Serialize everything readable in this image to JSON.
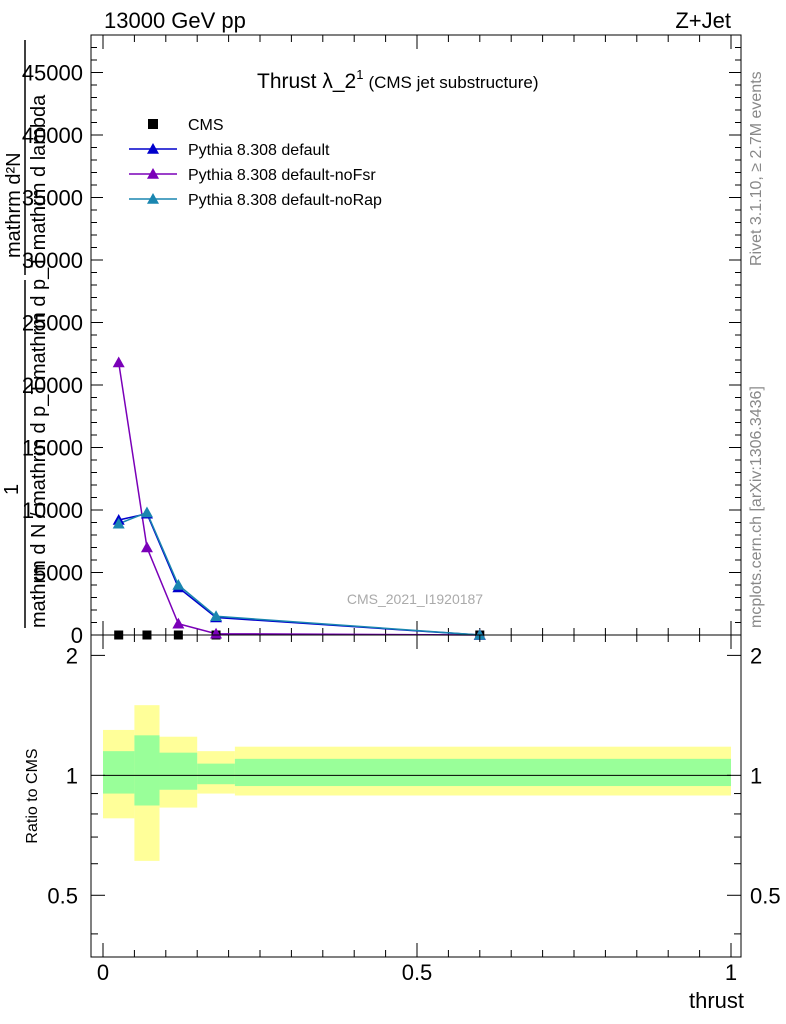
{
  "header": {
    "left": "13000 GeV pp",
    "right": "Z+Jet"
  },
  "side_text": {
    "rivet": "Rivet 3.1.10, ≥ 2.7M events",
    "mcplots": "mcplots.cern.ch [arXiv:1306.3436]"
  },
  "chart_data": [
    {
      "type": "line",
      "title": "Thrust λ_2",
      "title_sup": "1",
      "subtitle": "(CMS jet substructure)",
      "watermark": "CMS_2021_I1920187",
      "ylabel_num": "mathrm d²N",
      "ylabel_den_top": "mathrm d p_T mathrm d lambda",
      "ylabel_one": "1",
      "ylabel_den_bottom": "mathrm d N / mathrm d p_T",
      "xlim": [
        0,
        1
      ],
      "ylim": [
        0,
        48000
      ],
      "yticks": [
        0,
        5000,
        10000,
        15000,
        20000,
        25000,
        30000,
        35000,
        40000,
        45000
      ],
      "ytick_labels": [
        "0",
        "5000",
        "10000",
        "15000",
        "20000",
        "25000",
        "30000",
        "35000",
        "40000",
        "45000"
      ],
      "legend_position": "top-left",
      "series": [
        {
          "name": "CMS",
          "color": "#000000",
          "marker": "square",
          "x": [
            0.025,
            0.07,
            0.12,
            0.18,
            0.6
          ],
          "y": [
            0,
            0,
            0,
            0,
            0
          ]
        },
        {
          "name": "Pythia 8.308 default",
          "color": "#0000cc",
          "marker": "triangle",
          "x": [
            0.025,
            0.07,
            0.12,
            0.18,
            0.6
          ],
          "y": [
            9200,
            9700,
            3800,
            1400,
            0
          ]
        },
        {
          "name": "Pythia 8.308 default-noFsr",
          "color": "#7a00b8",
          "marker": "triangle",
          "x": [
            0.025,
            0.07,
            0.12,
            0.18,
            0.6
          ],
          "y": [
            21800,
            7000,
            900,
            100,
            0
          ]
        },
        {
          "name": "Pythia 8.308 default-noRap",
          "color": "#1a86b0",
          "marker": "triangle",
          "x": [
            0.025,
            0.07,
            0.12,
            0.18,
            0.6
          ],
          "y": [
            8900,
            9800,
            4000,
            1500,
            0
          ]
        }
      ]
    },
    {
      "type": "area",
      "ylabel": "Ratio to CMS",
      "xlabel": "thrust",
      "xlim": [
        0,
        1
      ],
      "ylim": [
        0.35,
        2.25
      ],
      "xticks": [
        0,
        0.5,
        1
      ],
      "xtick_labels": [
        "0",
        "0.5",
        "1"
      ],
      "yticks": [
        0.5,
        1,
        2
      ],
      "ytick_labels": [
        "0.5",
        "1",
        "2"
      ],
      "reference_line": 1,
      "bins": [
        0,
        0.05,
        0.09,
        0.15,
        0.21,
        1
      ],
      "band_outer": {
        "color": "#ffff99",
        "low": [
          0.78,
          0.61,
          0.83,
          0.9,
          0.89
        ],
        "high": [
          1.3,
          1.5,
          1.25,
          1.15,
          1.18
        ]
      },
      "band_inner": {
        "color": "#99ff99",
        "low": [
          0.9,
          0.84,
          0.92,
          0.95,
          0.94
        ],
        "high": [
          1.15,
          1.26,
          1.14,
          1.07,
          1.1
        ]
      }
    }
  ]
}
